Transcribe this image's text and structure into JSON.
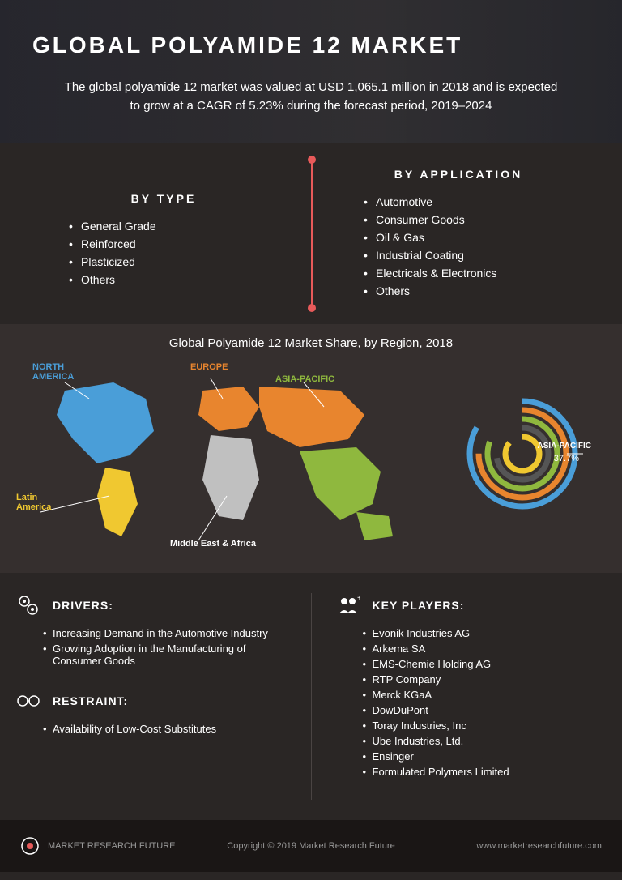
{
  "hero": {
    "title": "GLOBAL POLYAMIDE 12 MARKET",
    "description": "The global polyamide 12 market was valued at USD 1,065.1 million in 2018 and is expected to grow at a CAGR of 5.23% during the forecast period, 2019–2024"
  },
  "categories": {
    "by_type": {
      "title": "BY TYPE",
      "items": [
        "General Grade",
        "Reinforced",
        "Plasticized",
        "Others"
      ]
    },
    "by_application": {
      "title": "BY APPLICATION",
      "items": [
        "Automotive",
        "Consumer Goods",
        "Oil & Gas",
        "Industrial Coating",
        "Electricals & Electronics",
        "Others"
      ]
    }
  },
  "map": {
    "title": "Global Polyamide 12 Market Share, by Region, 2018",
    "regions": {
      "north_america": {
        "label": "NORTH AMERICA",
        "color": "#4a9ed8"
      },
      "europe": {
        "label": "EUROPE",
        "color": "#e8852e"
      },
      "asia_pacific": {
        "label": "ASIA-PACIFIC",
        "color": "#8fb83e"
      },
      "latin_america": {
        "label": "Latin America",
        "color": "#f0c830"
      },
      "mea": {
        "label": "Middle East & Africa",
        "color": "#c0c0c0"
      }
    },
    "ring_chart": {
      "label": "ASIA-PACIFIC",
      "value": "37.7%",
      "rings": [
        {
          "color": "#4a9ed8",
          "radius": 65,
          "arc": 300
        },
        {
          "color": "#e8852e",
          "radius": 54,
          "arc": 270
        },
        {
          "color": "#8fb83e",
          "radius": 43,
          "arc": 290
        },
        {
          "color": "#555",
          "radius": 32,
          "arc": 260
        },
        {
          "color": "#f0c830",
          "radius": 21,
          "arc": 310
        }
      ]
    }
  },
  "drivers": {
    "title": "DRIVERS:",
    "items": [
      "Increasing Demand in the Automotive Industry",
      "Growing Adoption in the Manufacturing of Consumer Goods"
    ]
  },
  "restraint": {
    "title": "RESTRAINT:",
    "items": [
      "Availability of Low-Cost Substitutes"
    ]
  },
  "key_players": {
    "title": "KEY PLAYERS:",
    "items": [
      "Evonik Industries AG",
      "Arkema SA",
      "EMS-Chemie Holding AG",
      "RTP Company",
      "Merck KGaA",
      "DowDuPont",
      "Toray Industries, Inc",
      "Ube Industries, Ltd.",
      "Ensinger",
      "Formulated Polymers Limited"
    ]
  },
  "footer": {
    "brand": "MARKET RESEARCH FUTURE",
    "copyright": "Copyright © 2019 Market Research Future",
    "url": "www.marketresearchfuture.com"
  }
}
